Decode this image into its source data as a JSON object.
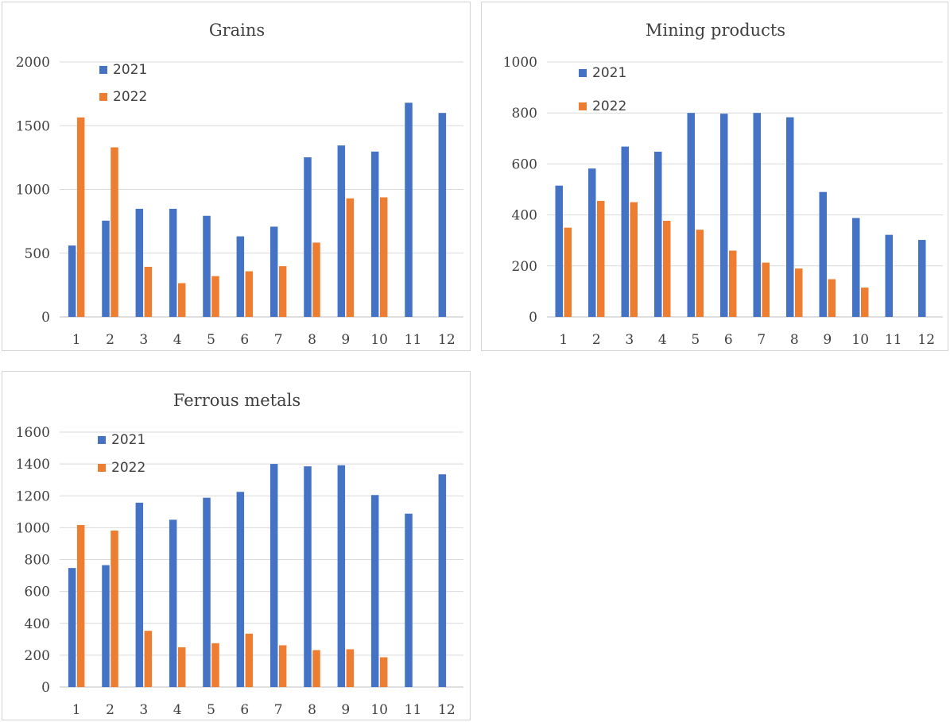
{
  "colors": {
    "s2021": "#4472c4",
    "s2022": "#ed7d31",
    "grid": "#d9d9d9",
    "axis": "#bfbfbf"
  },
  "chart_data": [
    {
      "type": "bar",
      "title": "Grains",
      "categories": [
        "1",
        "2",
        "3",
        "4",
        "5",
        "6",
        "7",
        "8",
        "9",
        "10",
        "11",
        "12"
      ],
      "ylim": [
        0,
        2000
      ],
      "yticks": [
        "0",
        "500",
        "1000",
        "1500",
        "2000"
      ],
      "grid": true,
      "legend_position": "top-left",
      "series": [
        {
          "name": "2021",
          "values": [
            560,
            755,
            848,
            848,
            793,
            632,
            708,
            1252,
            1345,
            1297,
            1680,
            1600
          ]
        },
        {
          "name": "2022",
          "values": [
            1565,
            1330,
            393,
            265,
            320,
            358,
            398,
            583,
            930,
            938,
            null,
            null
          ]
        }
      ]
    },
    {
      "type": "bar",
      "title": "Mining products",
      "categories": [
        "1",
        "2",
        "3",
        "4",
        "5",
        "6",
        "7",
        "8",
        "9",
        "10",
        "11",
        "12"
      ],
      "ylim": [
        0,
        1000
      ],
      "yticks": [
        "0",
        "200",
        "400",
        "600",
        "800",
        "1000"
      ],
      "grid": true,
      "legend_position": "top-left",
      "series": [
        {
          "name": "2021",
          "values": [
            515,
            582,
            668,
            648,
            800,
            797,
            800,
            783,
            490,
            388,
            322,
            302
          ]
        },
        {
          "name": "2022",
          "values": [
            350,
            455,
            450,
            377,
            342,
            260,
            213,
            190,
            148,
            115,
            null,
            null
          ]
        }
      ]
    },
    {
      "type": "bar",
      "title": "Ferrous metals",
      "categories": [
        "1",
        "2",
        "3",
        "4",
        "5",
        "6",
        "7",
        "8",
        "9",
        "10",
        "11",
        "12"
      ],
      "ylim": [
        0,
        1600
      ],
      "yticks": [
        "0",
        "200",
        "400",
        "600",
        "800",
        "1000",
        "1200",
        "1400",
        "1600"
      ],
      "grid": true,
      "legend_position": "top-left",
      "series": [
        {
          "name": "2021",
          "values": [
            747,
            765,
            1157,
            1050,
            1188,
            1225,
            1400,
            1385,
            1392,
            1205,
            1088,
            1335
          ]
        },
        {
          "name": "2022",
          "values": [
            1017,
            982,
            353,
            250,
            275,
            335,
            262,
            232,
            237,
            187,
            null,
            null
          ]
        }
      ]
    }
  ]
}
